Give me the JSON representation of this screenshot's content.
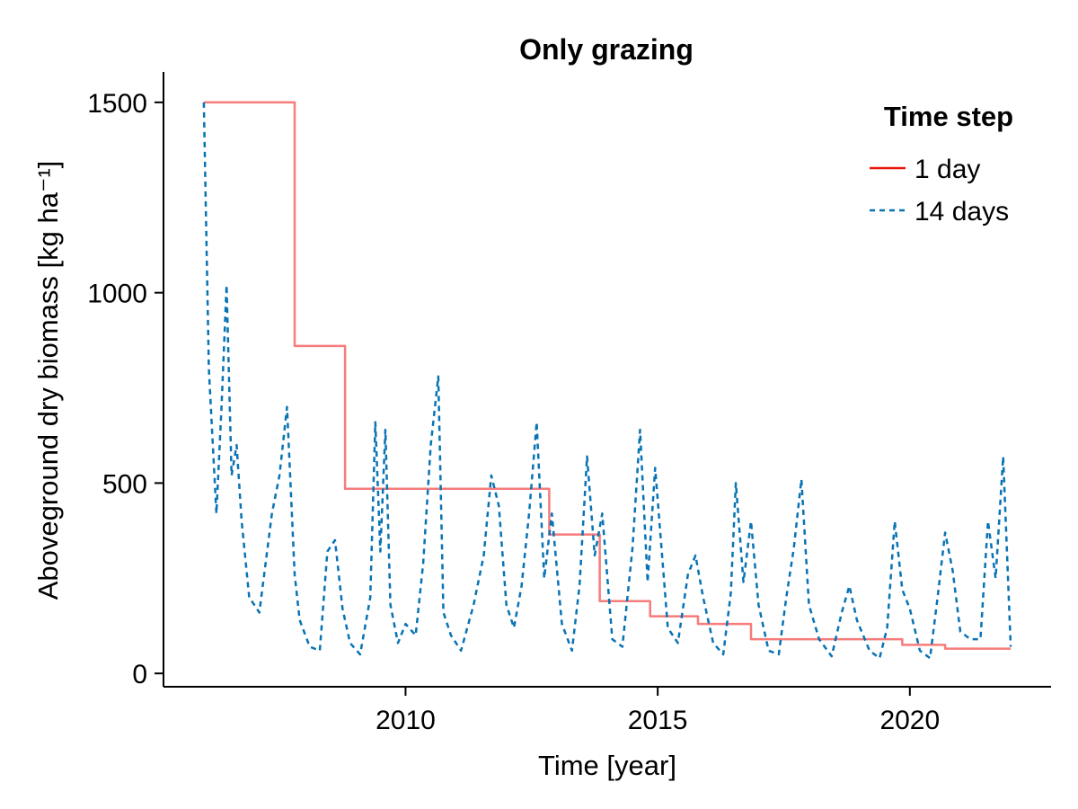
{
  "chart_data": {
    "type": "line",
    "title": "Only grazing",
    "xlabel": "Time [year]",
    "ylabel": "Aboveground dry biomass [kg ha⁻¹]",
    "xlim": [
      2005.2,
      2022.8
    ],
    "ylim": [
      -35,
      1580
    ],
    "xticks": [
      2010,
      2015,
      2020
    ],
    "yticks": [
      0,
      500,
      1000,
      1500
    ],
    "grid": false,
    "legend": {
      "title": "Time step",
      "position": "top-right"
    },
    "series": [
      {
        "name": "1 day",
        "style": "solid",
        "color": "#f77b7b",
        "legend_color": "#e8150b",
        "x": [
          2006.0,
          2007.8,
          2007.8,
          2008.8,
          2008.8,
          2012.85,
          2012.85,
          2013.85,
          2013.85,
          2014.85,
          2014.85,
          2015.8,
          2015.8,
          2016.85,
          2016.85,
          2019.85,
          2019.85,
          2020.7,
          2020.7,
          2022.0
        ],
        "y": [
          1500,
          1500,
          860,
          860,
          485,
          485,
          365,
          365,
          190,
          190,
          150,
          150,
          130,
          130,
          90,
          90,
          75,
          75,
          65,
          65
        ]
      },
      {
        "name": "14 days",
        "style": "dashed",
        "color": "#0873b4",
        "legend_color": "#0873b4",
        "x": [
          2006.0,
          2006.1,
          2006.25,
          2006.35,
          2006.45,
          2006.55,
          2006.65,
          2006.75,
          2006.9,
          2007.1,
          2007.35,
          2007.5,
          2007.65,
          2007.8,
          2007.9,
          2008.1,
          2008.3,
          2008.45,
          2008.6,
          2008.75,
          2008.9,
          2009.1,
          2009.3,
          2009.4,
          2009.5,
          2009.6,
          2009.7,
          2009.85,
          2010.0,
          2010.2,
          2010.35,
          2010.5,
          2010.65,
          2010.75,
          2010.9,
          2011.1,
          2011.35,
          2011.55,
          2011.7,
          2011.85,
          2012.0,
          2012.15,
          2012.3,
          2012.45,
          2012.6,
          2012.75,
          2012.9,
          2013.1,
          2013.3,
          2013.45,
          2013.6,
          2013.75,
          2013.9,
          2014.1,
          2014.3,
          2014.5,
          2014.65,
          2014.8,
          2014.95,
          2015.2,
          2015.4,
          2015.6,
          2015.75,
          2015.9,
          2016.1,
          2016.3,
          2016.45,
          2016.55,
          2016.7,
          2016.85,
          2017.0,
          2017.2,
          2017.4,
          2017.55,
          2017.7,
          2017.85,
          2018.0,
          2018.2,
          2018.45,
          2018.65,
          2018.8,
          2018.95,
          2019.2,
          2019.4,
          2019.55,
          2019.7,
          2019.85,
          2020.0,
          2020.2,
          2020.4,
          2020.55,
          2020.7,
          2020.85,
          2021.0,
          2021.2,
          2021.4,
          2021.55,
          2021.7,
          2021.85,
          2022.0
        ],
        "y": [
          1500,
          800,
          420,
          700,
          1020,
          520,
          600,
          400,
          200,
          160,
          420,
          520,
          700,
          260,
          140,
          70,
          60,
          320,
          350,
          170,
          80,
          50,
          200,
          660,
          320,
          640,
          180,
          80,
          130,
          100,
          290,
          600,
          780,
          160,
          100,
          60,
          180,
          310,
          520,
          440,
          180,
          120,
          230,
          420,
          660,
          250,
          420,
          130,
          60,
          230,
          570,
          310,
          420,
          90,
          70,
          330,
          640,
          240,
          540,
          120,
          80,
          260,
          310,
          200,
          80,
          50,
          210,
          500,
          240,
          400,
          180,
          60,
          50,
          200,
          330,
          510,
          180,
          90,
          45,
          160,
          230,
          140,
          60,
          40,
          120,
          400,
          220,
          170,
          60,
          40,
          200,
          370,
          270,
          110,
          90,
          90,
          400,
          250,
          570,
          70
        ]
      }
    ]
  }
}
